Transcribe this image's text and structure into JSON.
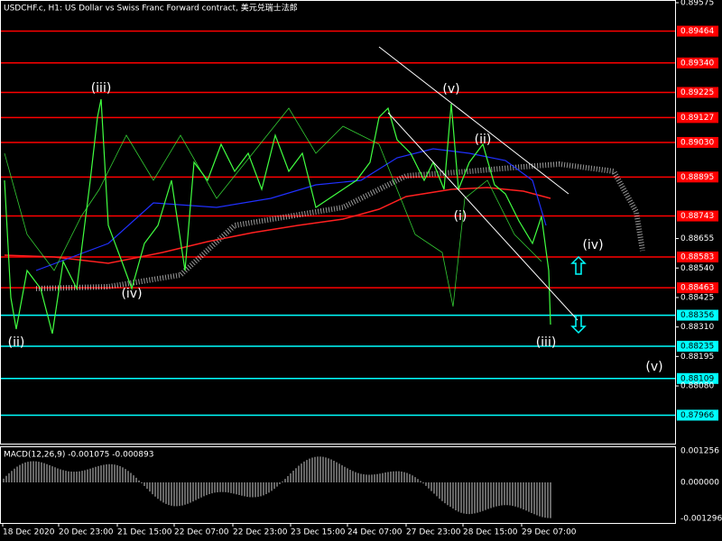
{
  "header": {
    "title": "USDCHF.c, H1:  US Dollar vs Swiss Franc Forward contract, 美元兑瑞士法郎"
  },
  "price_axis": {
    "ylim": [
      0.87855,
      0.89575
    ],
    "ticks": [
      0.89575,
      0.88655,
      0.8854,
      0.88425,
      0.8831,
      0.88195,
      0.8808
    ],
    "tick_labels": [
      "0.89575",
      "0.88655",
      "0.88540",
      "0.88425",
      "0.88310",
      "0.88195",
      "0.88080"
    ]
  },
  "levels": [
    {
      "value": 0.89464,
      "label": "0.89464",
      "color": "#ff0000"
    },
    {
      "value": 0.8934,
      "label": "0.89340",
      "color": "#ff0000"
    },
    {
      "value": 0.89225,
      "label": "0.89225",
      "color": "#ff0000"
    },
    {
      "value": 0.89127,
      "label": "0.89127",
      "color": "#ff0000"
    },
    {
      "value": 0.8903,
      "label": "0.89030",
      "color": "#ff0000"
    },
    {
      "value": 0.88895,
      "label": "0.88895",
      "color": "#ff0000"
    },
    {
      "value": 0.88743,
      "label": "0.88743",
      "color": "#ff0000"
    },
    {
      "value": 0.88583,
      "label": "0.88583",
      "color": "#ff0000"
    },
    {
      "value": 0.88463,
      "label": "0.88463",
      "color": "#ff0000"
    },
    {
      "value": 0.88356,
      "label": "0.88356",
      "color": "#00ffff"
    },
    {
      "value": 0.88235,
      "label": "0.88235",
      "color": "#00ffff"
    },
    {
      "value": 0.88109,
      "label": "0.88109",
      "color": "#00ffff"
    },
    {
      "value": 0.87966,
      "label": "0.87966",
      "color": "#00ffff"
    }
  ],
  "wave_labels": [
    "(iii)",
    "(v)",
    "(ii)",
    "(i)",
    "(iv)",
    "(iv)",
    "(ii)",
    "(iii)",
    "(v)"
  ],
  "macd": {
    "label": "MACD(12,26,9) -0.001075 -0.000893",
    "ticks": [
      "0.001256",
      "0.000000",
      "-0.001296"
    ]
  },
  "time_labels": [
    "18 Dec 2020",
    "20 Dec 23:00",
    "21 Dec 15:00",
    "22 Dec 07:00",
    "22 Dec 23:00",
    "23 Dec 15:00",
    "24 Dec 07:00",
    "27 Dec 23:00",
    "28 Dec 15:00",
    "29 Dec 07:00"
  ]
}
